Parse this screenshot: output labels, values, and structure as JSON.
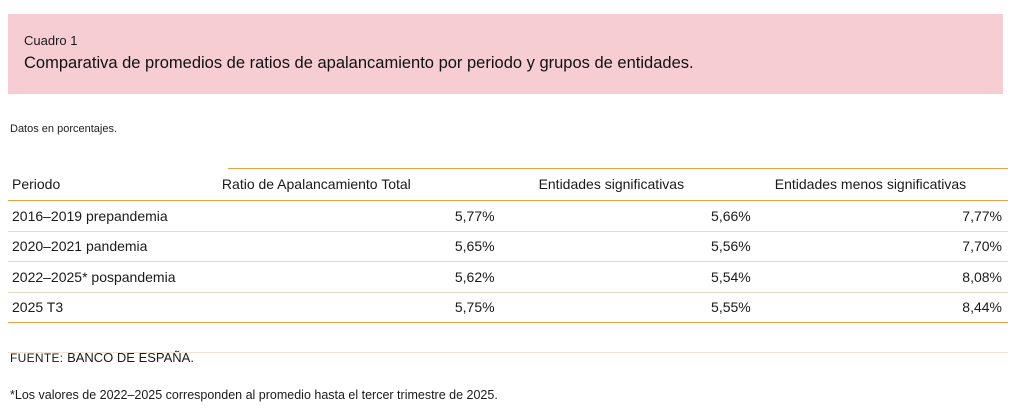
{
  "header": {
    "label": "Cuadro 1",
    "title": "Comparativa de promedios de ratios de apalancamiento por periodo y grupos de entidades."
  },
  "note": "Datos en porcentajes.",
  "table": {
    "columns": [
      "Periodo",
      "Ratio de Apalancamiento Total",
      "Entidades significativas",
      "Entidades menos significativas"
    ],
    "rows": [
      [
        "2016–2019 prepandemia",
        "5,77%",
        "5,66%",
        "7,77%"
      ],
      [
        "2020–2021 pandemia",
        "5,65%",
        "5,56%",
        "7,70%"
      ],
      [
        "2022–2025* pospandemia",
        "5,62%",
        "5,54%",
        "8,08%"
      ],
      [
        "2025 T3",
        "5,75%",
        "5,55%",
        "8,44%"
      ]
    ]
  },
  "source": {
    "label": "FUENTE:",
    "text": "BANCO DE ESPAÑA."
  },
  "footnote": "*Los valores de 2022–2025 corresponden  al promedio  hasta el tercer trimestre de 2025."
}
